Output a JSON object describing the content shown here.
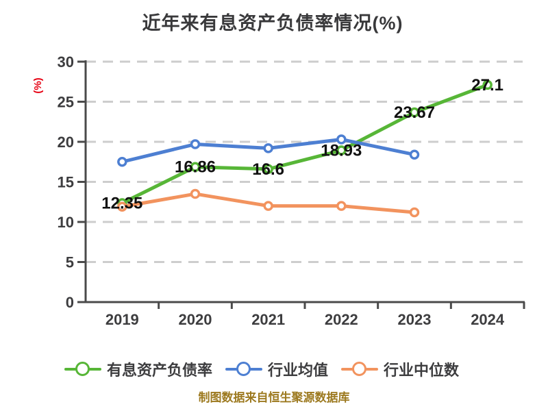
{
  "chart_data": {
    "type": "line",
    "title": "近年来有息资产负债率情况(%)",
    "ylabel": "(%)",
    "xlabel": "",
    "categories": [
      "2019",
      "2020",
      "2021",
      "2022",
      "2023",
      "2024"
    ],
    "series": [
      {
        "name": "有息资产负债率",
        "color": "#57b637",
        "values": [
          12.35,
          16.86,
          16.6,
          18.93,
          23.67,
          27.1
        ],
        "labels": [
          "12.35",
          "16.86",
          "16.6",
          "18.93",
          "23.67",
          "27.1"
        ],
        "labeled": true
      },
      {
        "name": "行业均值",
        "color": "#4d7fd2",
        "values": [
          17.5,
          19.7,
          19.2,
          20.3,
          18.4,
          null
        ],
        "labeled": false
      },
      {
        "name": "行业中位数",
        "color": "#f2935e",
        "values": [
          11.9,
          13.5,
          12.0,
          12.0,
          11.2,
          null
        ],
        "labeled": false
      }
    ],
    "ylim": [
      0,
      30
    ],
    "yticks": [
      0,
      5,
      10,
      15,
      20,
      25,
      30
    ],
    "grid": "horizontal-dashed",
    "legend_position": "bottom",
    "marker": "circle-white-fill"
  },
  "style_colors": {
    "title_text": "#39393b",
    "axis_line": "#4a4a4a",
    "tick_label": "#3d3d3f",
    "gridline": "#cdcdcd",
    "data_label": "#111111",
    "ylabel_red": "#e60012",
    "footer_gold": "#9c791f"
  },
  "footer": {
    "source_note": "制图数据来自恒生聚源数据库"
  }
}
